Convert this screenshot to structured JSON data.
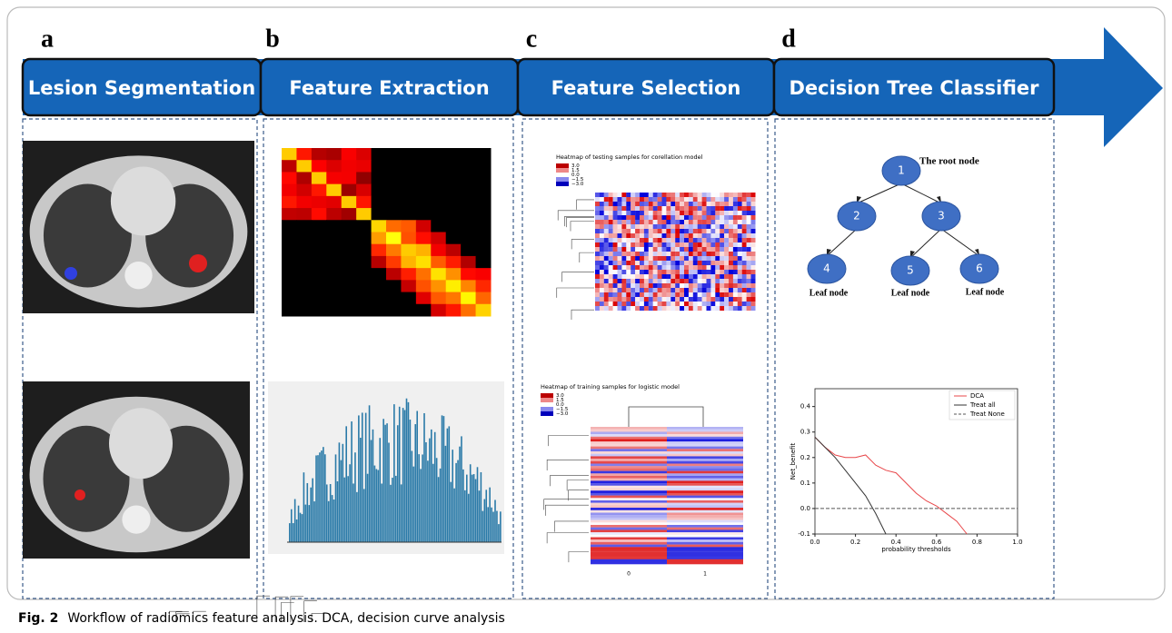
{
  "panels": [
    {
      "letter": "a",
      "title": "Lesion Segmentation"
    },
    {
      "letter": "b",
      "title": "Feature Extraction"
    },
    {
      "letter": "c",
      "title": "Feature Selection"
    },
    {
      "letter": "d",
      "title": "Decision Tree Classifier"
    }
  ],
  "heatmaps": [
    {
      "title": "Heatmap of testing samples for corellation model",
      "legend": [
        "3.0",
        "1.5",
        "0.0",
        "−1.5",
        "−3.0"
      ]
    },
    {
      "title": "Heatmap of training samples for logistic model",
      "legend": [
        "3.0",
        "1.5",
        "0.0",
        "−1.5",
        "−3.0"
      ],
      "columns": [
        "0",
        "1"
      ]
    }
  ],
  "tree": {
    "nodes": [
      "1",
      "2",
      "3",
      "4",
      "5",
      "6"
    ],
    "root_label": "The root node",
    "leaf_labels": [
      "Leaf node",
      "Leaf node",
      "Leaf node"
    ]
  },
  "chart_data": {
    "type": "line",
    "xlabel": "probability thresholds",
    "ylabel": "Net_benefit",
    "x": [
      0,
      0.05,
      0.1,
      0.15,
      0.2,
      0.25,
      0.3,
      0.35,
      0.4,
      0.45,
      0.5,
      0.55,
      0.6,
      0.65,
      0.7,
      0.75,
      0.8,
      0.85,
      0.9,
      0.95,
      1.0
    ],
    "series": [
      {
        "name": "DCA",
        "color": "#e8474a",
        "dash": false,
        "values": [
          0.28,
          0.24,
          0.21,
          0.2,
          0.2,
          0.21,
          0.17,
          0.15,
          0.14,
          0.1,
          0.06,
          0.03,
          0.01,
          -0.02,
          -0.05,
          -0.1,
          null,
          null,
          null,
          null,
          null
        ]
      },
      {
        "name": "Treat all",
        "color": "#333333",
        "dash": false,
        "values": [
          0.28,
          0.24,
          0.2,
          0.15,
          0.1,
          0.05,
          -0.02,
          -0.1,
          null,
          null,
          null,
          null,
          null,
          null,
          null,
          null,
          null,
          null,
          null,
          null,
          null
        ]
      },
      {
        "name": "Treat None",
        "color": "#555555",
        "dash": true,
        "values": [
          0,
          0,
          0,
          0,
          0,
          0,
          0,
          0,
          0,
          0,
          0,
          0,
          0,
          0,
          0,
          0,
          0,
          0,
          0,
          0,
          0
        ]
      }
    ],
    "xlim": [
      0,
      1
    ],
    "ylim": [
      -0.1,
      0.47
    ],
    "xticks": [
      {
        "value": 0,
        "label": "0.0"
      },
      {
        "value": 0.2,
        "label": "0.2"
      },
      {
        "value": 0.4,
        "label": "0.4"
      },
      {
        "value": 0.6,
        "label": "0.6"
      },
      {
        "value": 0.8,
        "label": "0.8"
      },
      {
        "value": 1,
        "label": "1.0"
      }
    ],
    "yticks": [
      {
        "value": -0.1,
        "label": "-0.1"
      },
      {
        "value": 0,
        "label": "0.0"
      },
      {
        "value": 0.1,
        "label": "0.1"
      },
      {
        "value": 0.2,
        "label": "0.2"
      },
      {
        "value": 0.3,
        "label": "0.3"
      },
      {
        "value": 0.4,
        "label": "0.4"
      }
    ],
    "legend": "upper right"
  },
  "caption": {
    "label": "Fig. 2",
    "text": "Workflow of radiomics feature analysis. DCA, decision curve analysis"
  }
}
